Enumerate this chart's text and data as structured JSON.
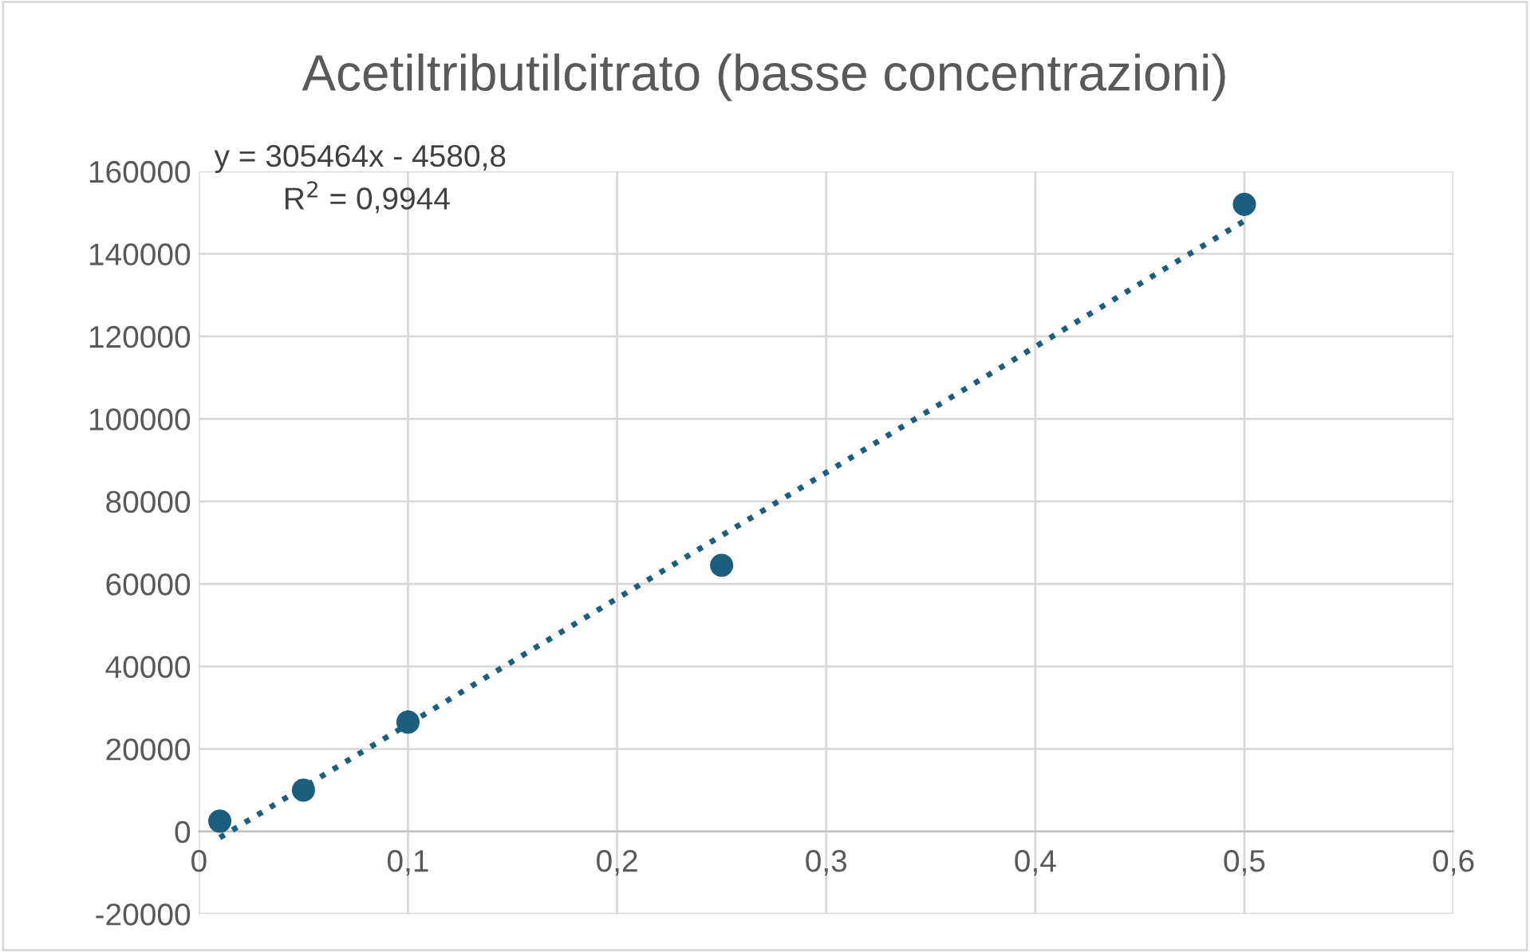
{
  "chart_data": {
    "type": "scatter",
    "title": "Acetiltributilcitrato (basse concentrazioni)",
    "series": [
      {
        "color": "#1b5e7e",
        "x": [
          0.01,
          0.05,
          0.1,
          0.25,
          0.5
        ],
        "values": [
          2500,
          10000,
          26500,
          64500,
          152000
        ],
        "marker": "circle"
      },
      {
        "type": "line",
        "color": "#1b5e7e",
        "x": [
          0.01,
          0.5
        ],
        "values": [
          -1500,
          148000
        ],
        "line_style": "dotted",
        "marker": "none"
      }
    ],
    "annotations": [
      "y = 305464x - 4580,8",
      "R$^{2}$ = 0,9944"
    ],
    "xlim": [
      0,
      0.6
    ],
    "xticks": [
      0,
      {
        "value": 0.1,
        "label": "0,1"
      },
      {
        "value": 0.2,
        "label": "0,2"
      },
      {
        "value": 0.3,
        "label": "0,3"
      },
      {
        "value": 0.4,
        "label": "0,4"
      },
      {
        "value": 0.5,
        "label": "0,5"
      },
      {
        "value": 0.6,
        "label": "0,6"
      }
    ],
    "ylim": [
      -20000,
      160000
    ],
    "yticks": [
      -20000,
      0,
      20000,
      40000,
      60000,
      80000,
      100000,
      120000,
      140000,
      160000
    ],
    "grid": true
  }
}
